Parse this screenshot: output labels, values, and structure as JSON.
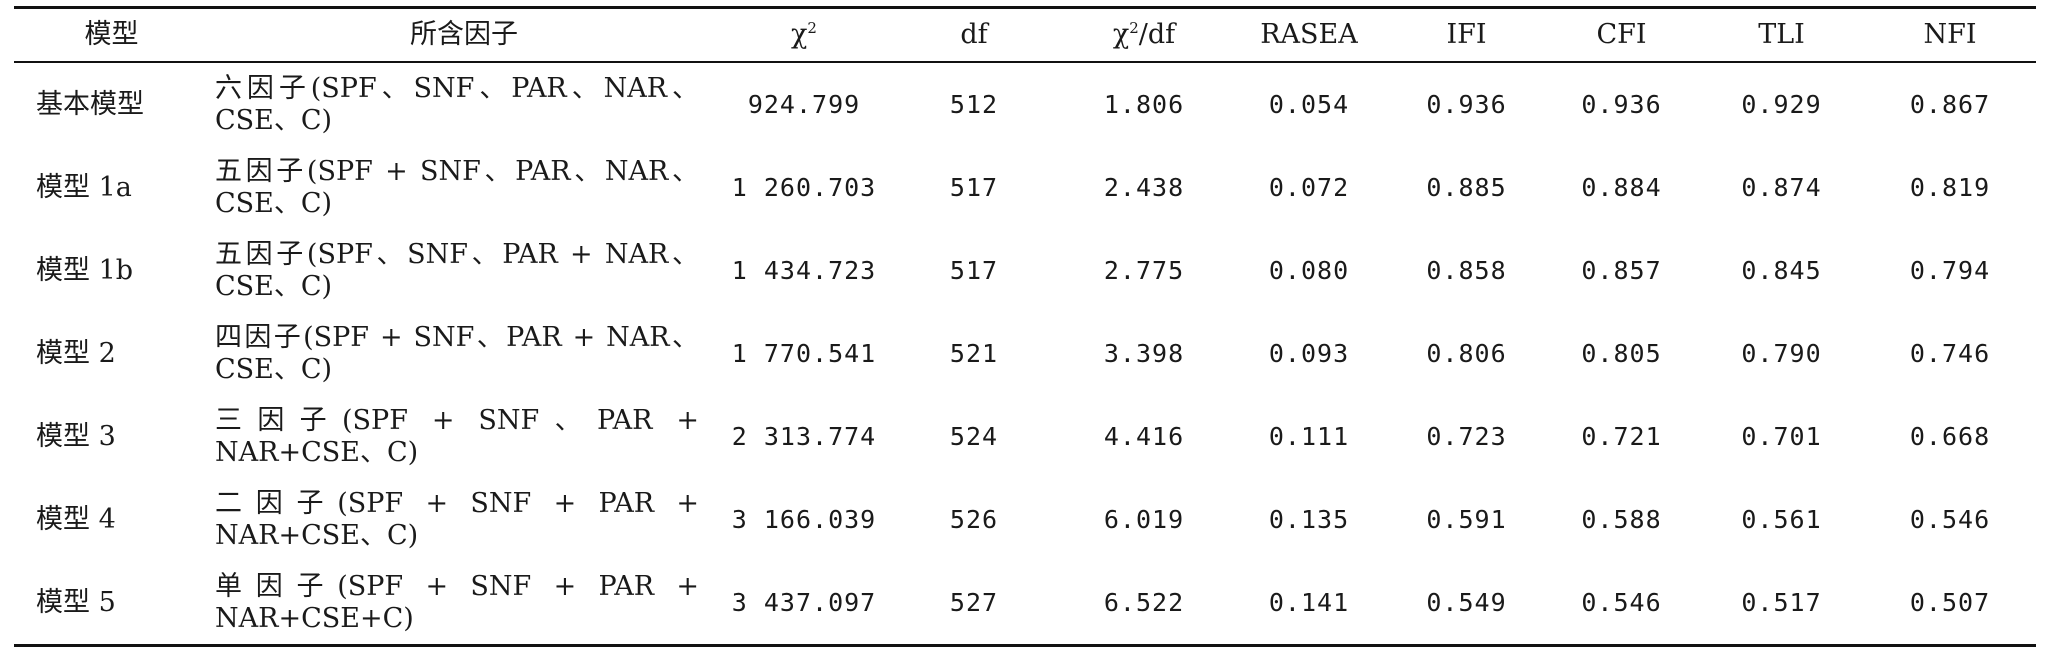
{
  "headers": {
    "model": "模型",
    "factors": "所含因子",
    "chi2": "χ",
    "chi2_sup": "2",
    "df": "df",
    "chi2df_pre": "χ",
    "chi2df_sup": "2",
    "chi2df_post": "/df",
    "rasea": "RASEA",
    "ifi": "IFI",
    "cfi": "CFI",
    "tli": "TLI",
    "nfi": "NFI"
  },
  "rows": [
    {
      "model": "基本模型",
      "factors": "六因子(SPF、SNF、PAR、NAR、CSE、C)",
      "chi2": "924.799",
      "df": "512",
      "chi2df": "1.806",
      "rasea": "0.054",
      "ifi": "0.936",
      "cfi": "0.936",
      "tli": "0.929",
      "nfi": "0.867"
    },
    {
      "model": "模型 1a",
      "factors": "五因子(SPF + SNF、PAR、NAR、CSE、C)",
      "chi2": "1 260.703",
      "df": "517",
      "chi2df": "2.438",
      "rasea": "0.072",
      "ifi": "0.885",
      "cfi": "0.884",
      "tli": "0.874",
      "nfi": "0.819"
    },
    {
      "model": "模型 1b",
      "factors": "五因子(SPF、SNF、PAR + NAR、CSE、C)",
      "chi2": "1 434.723",
      "df": "517",
      "chi2df": "2.775",
      "rasea": "0.080",
      "ifi": "0.858",
      "cfi": "0.857",
      "tli": "0.845",
      "nfi": "0.794"
    },
    {
      "model": "模型 2",
      "factors": "四因子(SPF + SNF、PAR + NAR、CSE、C)",
      "chi2": "1 770.541",
      "df": "521",
      "chi2df": "3.398",
      "rasea": "0.093",
      "ifi": "0.806",
      "cfi": "0.805",
      "tli": "0.790",
      "nfi": "0.746"
    },
    {
      "model": "模型 3",
      "factors": "三因子(SPF + SNF、PAR + NAR+CSE、C)",
      "chi2": "2 313.774",
      "df": "524",
      "chi2df": "4.416",
      "rasea": "0.111",
      "ifi": "0.723",
      "cfi": "0.721",
      "tli": "0.701",
      "nfi": "0.668"
    },
    {
      "model": "模型 4",
      "factors": "二因子(SPF + SNF + PAR + NAR+CSE、C)",
      "chi2": "3 166.039",
      "df": "526",
      "chi2df": "6.019",
      "rasea": "0.135",
      "ifi": "0.591",
      "cfi": "0.588",
      "tli": "0.561",
      "nfi": "0.546"
    },
    {
      "model": "模型 5",
      "factors": "单因子(SPF + SNF + PAR + NAR+CSE+C)",
      "chi2": "3 437.097",
      "df": "527",
      "chi2df": "6.522",
      "rasea": "0.141",
      "ifi": "0.549",
      "cfi": "0.546",
      "tli": "0.517",
      "nfi": "0.507"
    }
  ]
}
